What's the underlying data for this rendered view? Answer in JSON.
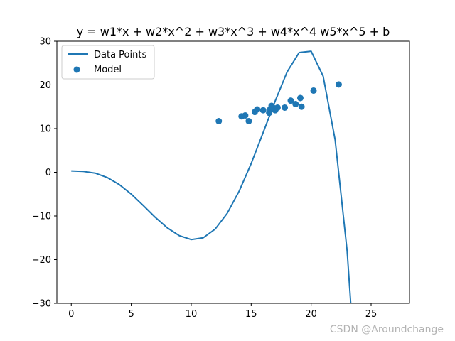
{
  "colors": {
    "series": "#1f77b4",
    "axis": "#000000",
    "legend_border": "#cccccc",
    "watermark": "#b3b3b3"
  },
  "watermark": "CSDN @Aroundchange",
  "chart_data": {
    "type": "line",
    "title": "y = w1*x + w2*x^2 + w3*x^3 + w4*x^4 w5*x^5 + b",
    "xlabel": "",
    "ylabel": "",
    "xlim": [
      -1.2,
      28.2
    ],
    "ylim": [
      -30,
      30
    ],
    "xticks": [
      0,
      5,
      10,
      15,
      20,
      25
    ],
    "yticks": [
      -30,
      -20,
      -10,
      0,
      10,
      20,
      30
    ],
    "tick_labels_x": [
      "0",
      "5",
      "10",
      "15",
      "20",
      "25"
    ],
    "tick_labels_y": [
      "−30",
      "−20",
      "−10",
      "0",
      "10",
      "20",
      "30"
    ],
    "legend_position": "upper-left",
    "grid": false,
    "series": [
      {
        "name": "Data Points",
        "kind": "line",
        "x": [
          0,
          1,
          2,
          3,
          4,
          5,
          6,
          7,
          8,
          9,
          10,
          11,
          12,
          13,
          14,
          15,
          16,
          17,
          18,
          19,
          20,
          21,
          22,
          23,
          23.3
        ],
        "y": [
          0.3,
          0.2,
          -0.2,
          -1.2,
          -2.8,
          -5.0,
          -7.6,
          -10.3,
          -12.7,
          -14.5,
          -15.4,
          -15.0,
          -13.0,
          -9.4,
          -4.3,
          2.0,
          9.1,
          16.3,
          23.0,
          27.4,
          27.7,
          22.0,
          7.4,
          -18.0,
          -30.0
        ]
      },
      {
        "name": "Model",
        "kind": "scatter",
        "x": [
          12.3,
          14.2,
          14.5,
          14.8,
          15.3,
          15.5,
          16.0,
          16.5,
          16.6,
          16.7,
          16.8,
          17.0,
          17.2,
          17.8,
          18.3,
          18.7,
          19.1,
          19.2,
          20.2,
          22.3
        ],
        "y": [
          11.7,
          12.8,
          13.0,
          11.7,
          13.8,
          14.4,
          14.2,
          13.6,
          14.5,
          15.2,
          14.8,
          14.2,
          14.8,
          14.8,
          16.4,
          15.6,
          17.0,
          15.0,
          18.7,
          20.1
        ]
      }
    ]
  }
}
